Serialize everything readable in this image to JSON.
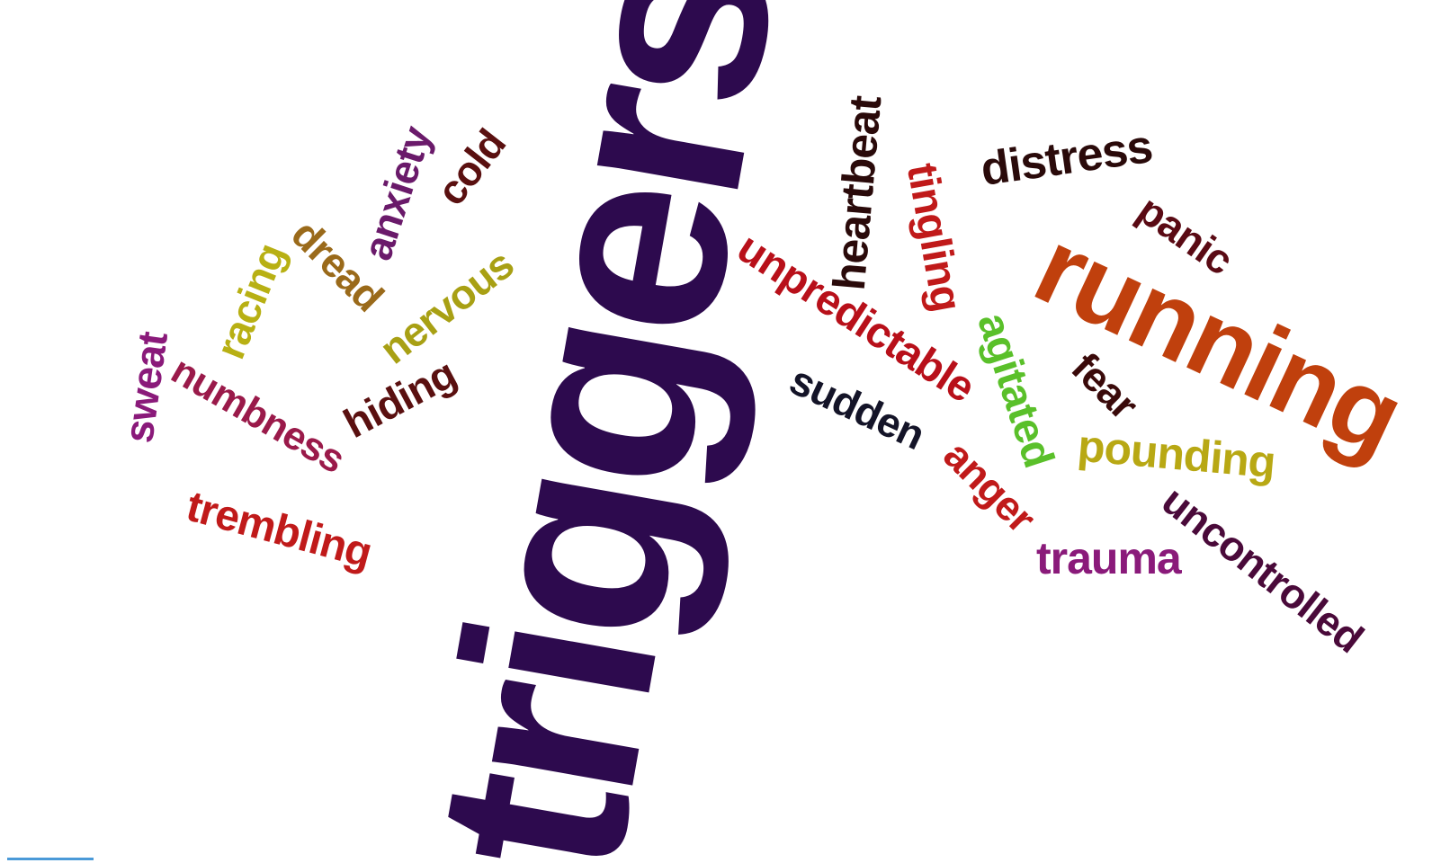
{
  "words": [
    {
      "text": "triggers",
      "color": "#2d0a4e"
    },
    {
      "text": "running",
      "color": "#c0400d"
    },
    {
      "text": "unpredictable",
      "color": "#b8101a"
    },
    {
      "text": "distress",
      "color": "#2a0a0a"
    },
    {
      "text": "heartbeat",
      "color": "#2a0a0a"
    },
    {
      "text": "tingling",
      "color": "#c01a1a"
    },
    {
      "text": "panic",
      "color": "#5a0a14"
    },
    {
      "text": "anxiety",
      "color": "#6a1a6a"
    },
    {
      "text": "cold",
      "color": "#5a1010"
    },
    {
      "text": "dread",
      "color": "#9a6a1a"
    },
    {
      "text": "racing",
      "color": "#b8b014"
    },
    {
      "text": "nervous",
      "color": "#a8a014"
    },
    {
      "text": "sweat",
      "color": "#8a1a7a"
    },
    {
      "text": "numbness",
      "color": "#9a1a4a"
    },
    {
      "text": "hiding",
      "color": "#5a1010"
    },
    {
      "text": "sudden",
      "color": "#141428"
    },
    {
      "text": "agitated",
      "color": "#5ac02a"
    },
    {
      "text": "fear",
      "color": "#3a0a0a"
    },
    {
      "text": "pounding",
      "color": "#b8a814"
    },
    {
      "text": "anger",
      "color": "#c01a1a"
    },
    {
      "text": "trembling",
      "color": "#c01a1a"
    },
    {
      "text": "trauma",
      "color": "#8a1a7a"
    },
    {
      "text": "uncontrolled",
      "color": "#4a0a3a"
    }
  ]
}
